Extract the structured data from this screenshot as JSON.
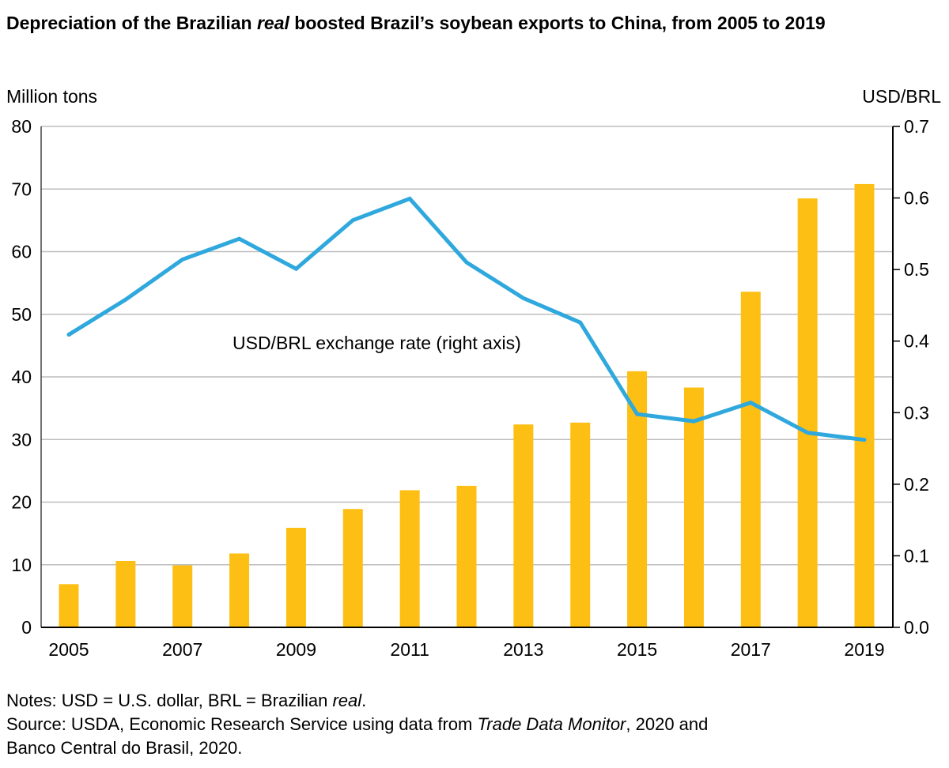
{
  "title_parts": [
    "Depreciation of the Brazilian ",
    "real",
    " boosted Brazil’s soybean exports to China, from 2005 to 2019"
  ],
  "notes": {
    "line1_parts": [
      "Notes: USD = U.S. dollar, BRL = Brazilian ",
      "real",
      "."
    ],
    "line2_parts": [
      "Source: USDA, Economic Research Service using data from ",
      "Trade Data Monitor",
      ", 2020 and"
    ],
    "line3": "Banco Central do Brasil, 2020."
  },
  "chart_data": {
    "type": "bar+line",
    "title": "Depreciation of the Brazilian real boosted Brazil’s soybean exports to China, from 2005 to 2019",
    "ylabel_left": "Million tons",
    "ylabel_right": "USD/BRL",
    "ylim_left": [
      0,
      80
    ],
    "ylim_right": [
      0,
      0.7
    ],
    "yticks_left": [
      "0",
      "10",
      "20",
      "30",
      "40",
      "50",
      "60",
      "70",
      "80"
    ],
    "yticks_right": [
      "0.0",
      "0.1",
      "0.2",
      "0.3",
      "0.4",
      "0.5",
      "0.6",
      "0.7"
    ],
    "categories": [
      2005,
      2006,
      2007,
      2008,
      2009,
      2010,
      2011,
      2012,
      2013,
      2014,
      2015,
      2016,
      2017,
      2018,
      2019
    ],
    "xtick_labels": [
      "2005",
      "2007",
      "2009",
      "2011",
      "2013",
      "2015",
      "2017",
      "2019"
    ],
    "grid": true,
    "series": [
      {
        "type": "bar",
        "axis": "left",
        "color": "#FDBF14",
        "values": [
          6.9,
          10.6,
          9.9,
          11.8,
          15.9,
          18.9,
          21.9,
          22.6,
          32.4,
          32.7,
          40.9,
          38.3,
          53.6,
          68.5,
          70.8
        ]
      },
      {
        "type": "line",
        "axis": "right",
        "name": "USD/BRL exchange rate (right axis)",
        "color": "#2FA8DD",
        "values": [
          0.409,
          0.458,
          0.514,
          0.543,
          0.501,
          0.569,
          0.599,
          0.51,
          0.46,
          0.426,
          0.298,
          0.288,
          0.314,
          0.272,
          0.262
        ]
      }
    ]
  }
}
